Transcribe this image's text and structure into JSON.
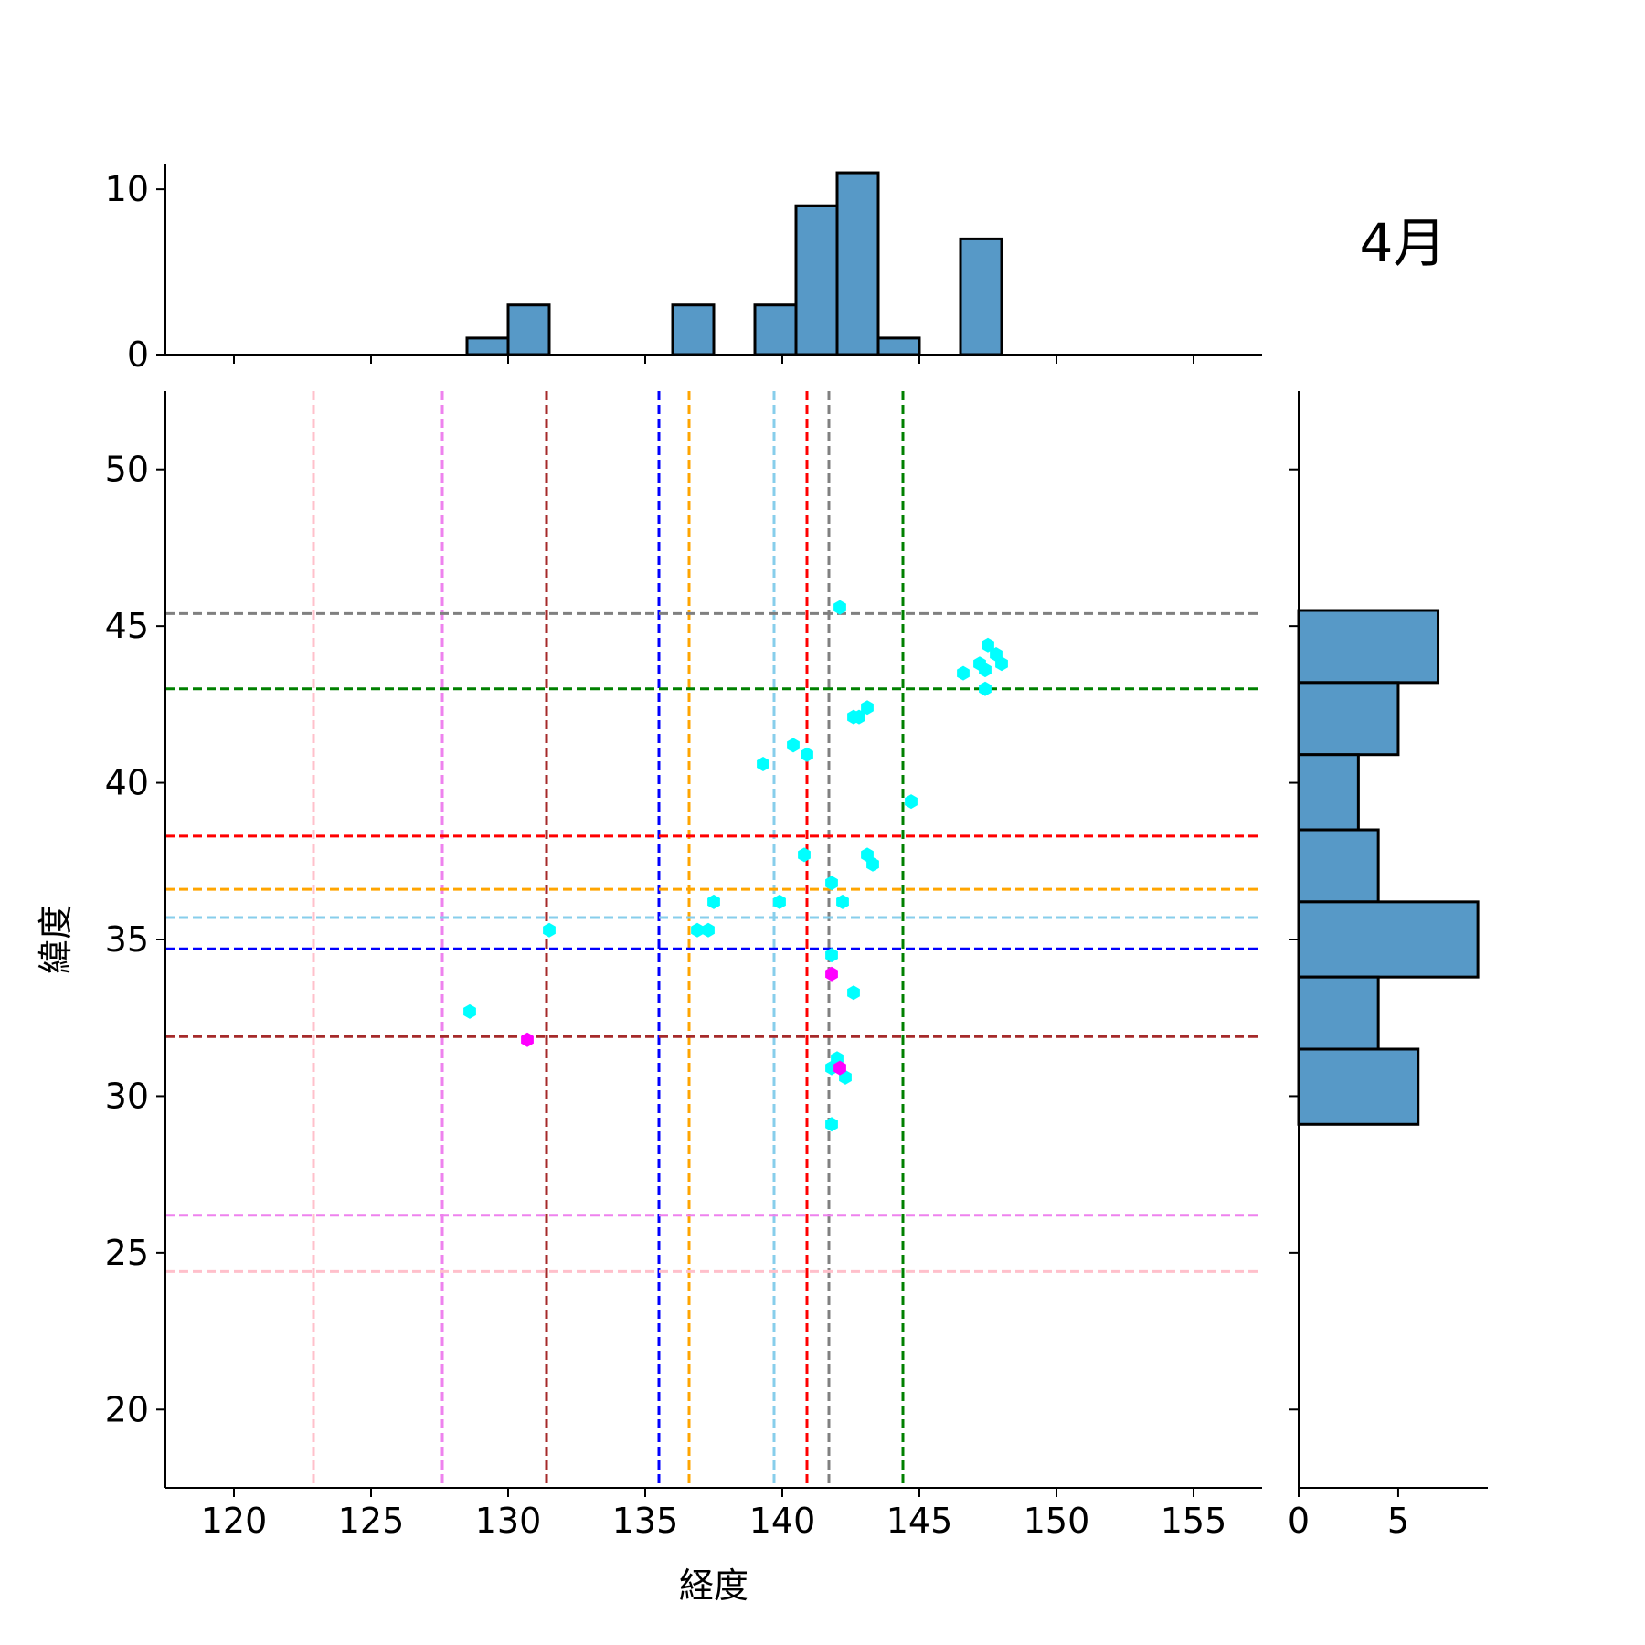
{
  "chart_data": {
    "type": "scatter",
    "month_label": "4月",
    "xlabel": "経度",
    "ylabel": "緯度",
    "xlim": [
      117.5,
      157.5
    ],
    "ylim": [
      17.5,
      52.5
    ],
    "xticks": [
      120,
      125,
      130,
      135,
      140,
      145,
      150,
      155
    ],
    "yticks": [
      20,
      25,
      30,
      35,
      40,
      45,
      50
    ],
    "points": {
      "cyan": [
        [
          142.1,
          45.6
        ],
        [
          147.5,
          44.4
        ],
        [
          147.8,
          44.1
        ],
        [
          148.0,
          43.8
        ],
        [
          147.2,
          43.8
        ],
        [
          147.4,
          43.6
        ],
        [
          146.6,
          43.5
        ],
        [
          147.4,
          43.0
        ],
        [
          143.1,
          42.4
        ],
        [
          142.8,
          42.1
        ],
        [
          142.6,
          42.1
        ],
        [
          140.4,
          41.2
        ],
        [
          140.9,
          40.9
        ],
        [
          139.3,
          40.6
        ],
        [
          144.7,
          39.4
        ],
        [
          140.8,
          37.7
        ],
        [
          143.1,
          37.7
        ],
        [
          143.3,
          37.4
        ],
        [
          141.8,
          36.8
        ],
        [
          137.5,
          36.2
        ],
        [
          139.9,
          36.2
        ],
        [
          142.2,
          36.2
        ],
        [
          136.9,
          35.3
        ],
        [
          137.3,
          35.3
        ],
        [
          131.5,
          35.3
        ],
        [
          141.8,
          34.5
        ],
        [
          142.6,
          33.3
        ],
        [
          128.6,
          32.7
        ],
        [
          142.0,
          31.2
        ],
        [
          141.8,
          30.9
        ],
        [
          142.3,
          30.6
        ],
        [
          141.8,
          29.1
        ]
      ],
      "magenta": [
        [
          130.7,
          31.8
        ],
        [
          141.8,
          33.9
        ],
        [
          142.1,
          30.9
        ]
      ]
    },
    "vertical_lines": [
      {
        "x": 122.9,
        "color": "#ffc0cb"
      },
      {
        "x": 127.6,
        "color": "#ee82ee"
      },
      {
        "x": 131.4,
        "color": "#a52a2a"
      },
      {
        "x": 135.5,
        "color": "#0000ff"
      },
      {
        "x": 136.6,
        "color": "#ffa500"
      },
      {
        "x": 139.7,
        "color": "#87ceeb"
      },
      {
        "x": 140.9,
        "color": "#ff0000"
      },
      {
        "x": 141.7,
        "color": "#808080"
      },
      {
        "x": 144.4,
        "color": "#008000"
      }
    ],
    "horizontal_lines": [
      {
        "y": 45.4,
        "color": "#808080"
      },
      {
        "y": 43.0,
        "color": "#008000"
      },
      {
        "y": 38.3,
        "color": "#ff0000"
      },
      {
        "y": 36.6,
        "color": "#ffa500"
      },
      {
        "y": 35.7,
        "color": "#87ceeb"
      },
      {
        "y": 34.7,
        "color": "#0000ff"
      },
      {
        "y": 31.9,
        "color": "#a52a2a"
      },
      {
        "y": 26.2,
        "color": "#ee82ee"
      },
      {
        "y": 24.4,
        "color": "#ffc0cb"
      }
    ],
    "top_histogram": {
      "ylim": [
        0,
        11.5
      ],
      "yticks": [
        0,
        10
      ],
      "bins": [
        {
          "x0": 128.5,
          "x1": 130.0,
          "count": 1
        },
        {
          "x0": 130.0,
          "x1": 131.5,
          "count": 3
        },
        {
          "x0": 136.0,
          "x1": 137.5,
          "count": 3
        },
        {
          "x0": 139.0,
          "x1": 140.5,
          "count": 3
        },
        {
          "x0": 140.5,
          "x1": 142.0,
          "count": 9
        },
        {
          "x0": 142.0,
          "x1": 143.5,
          "count": 11
        },
        {
          "x0": 143.5,
          "x1": 145.0,
          "count": 1
        },
        {
          "x0": 146.5,
          "x1": 148.0,
          "count": 7
        }
      ]
    },
    "right_histogram": {
      "xlim": [
        0,
        9.5
      ],
      "xticks": [
        0,
        5
      ],
      "bins": [
        {
          "y0": 43.2,
          "y1": 45.5,
          "count": 7
        },
        {
          "y0": 40.9,
          "y1": 43.2,
          "count": 5
        },
        {
          "y0": 38.5,
          "y1": 40.9,
          "count": 3
        },
        {
          "y0": 36.2,
          "y1": 38.5,
          "count": 4
        },
        {
          "y0": 33.8,
          "y1": 36.2,
          "count": 9
        },
        {
          "y0": 31.5,
          "y1": 33.8,
          "count": 4
        },
        {
          "y0": 29.1,
          "y1": 31.5,
          "count": 6
        }
      ]
    },
    "colors": {
      "bar_fill": "#5799c7",
      "bar_edge": "#000000",
      "point_primary": "#00ffff",
      "point_secondary": "#ff00ff"
    }
  }
}
